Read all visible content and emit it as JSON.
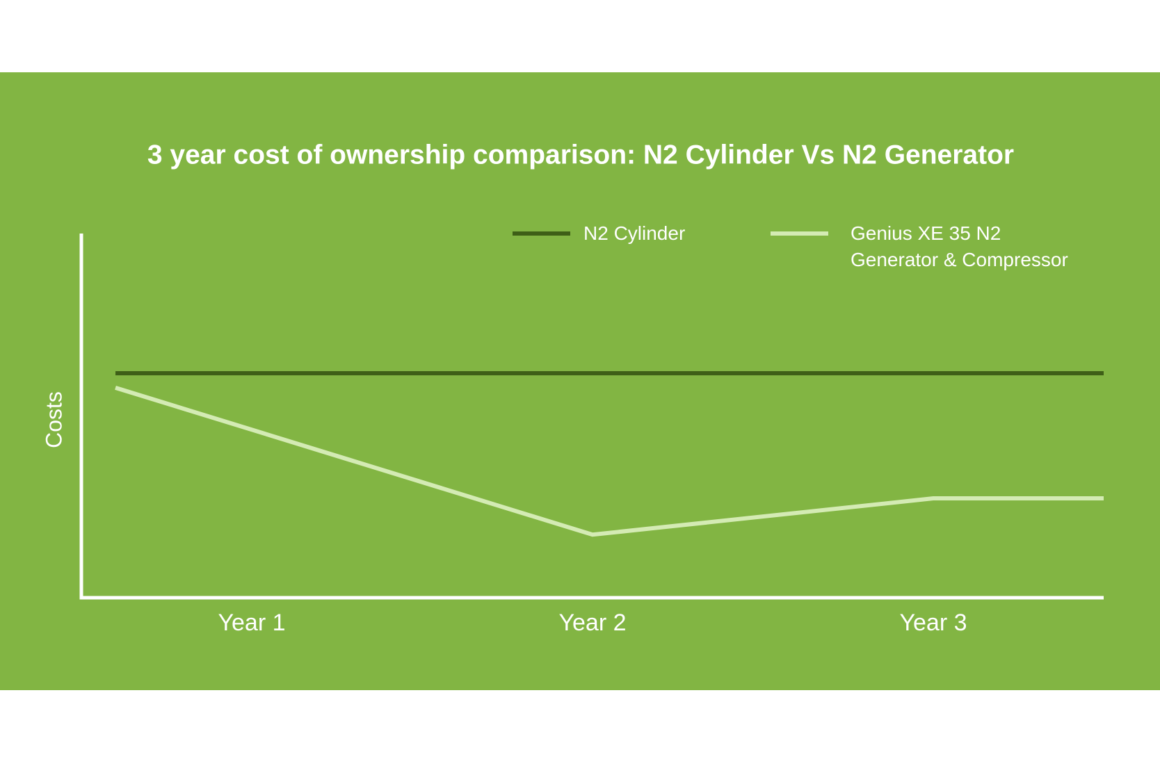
{
  "chart_data": {
    "type": "line",
    "title": "3 year cost of ownership comparison: N2 Cylinder Vs N2 Generator",
    "y_label": "Costs",
    "xlim": [
      0.5,
      3.5
    ],
    "xticks": [
      {
        "value": 1,
        "label": "Year 1"
      },
      {
        "value": 2,
        "label": "Year 2"
      },
      {
        "value": 3,
        "label": "Year 3"
      }
    ],
    "ylim": [
      0,
      100
    ],
    "series": [
      {
        "name": "N2 Cylinder",
        "color": "#3e5f17",
        "x": [
          0.6,
          3.5
        ],
        "values": [
          61.5,
          61.5
        ]
      },
      {
        "name": "Genius XE 35 N2 Generator & Compressor",
        "color": "#d4ebb4",
        "x": [
          0.6,
          2,
          3,
          3.5
        ],
        "values": [
          57.5,
          17,
          27,
          27
        ]
      }
    ]
  }
}
